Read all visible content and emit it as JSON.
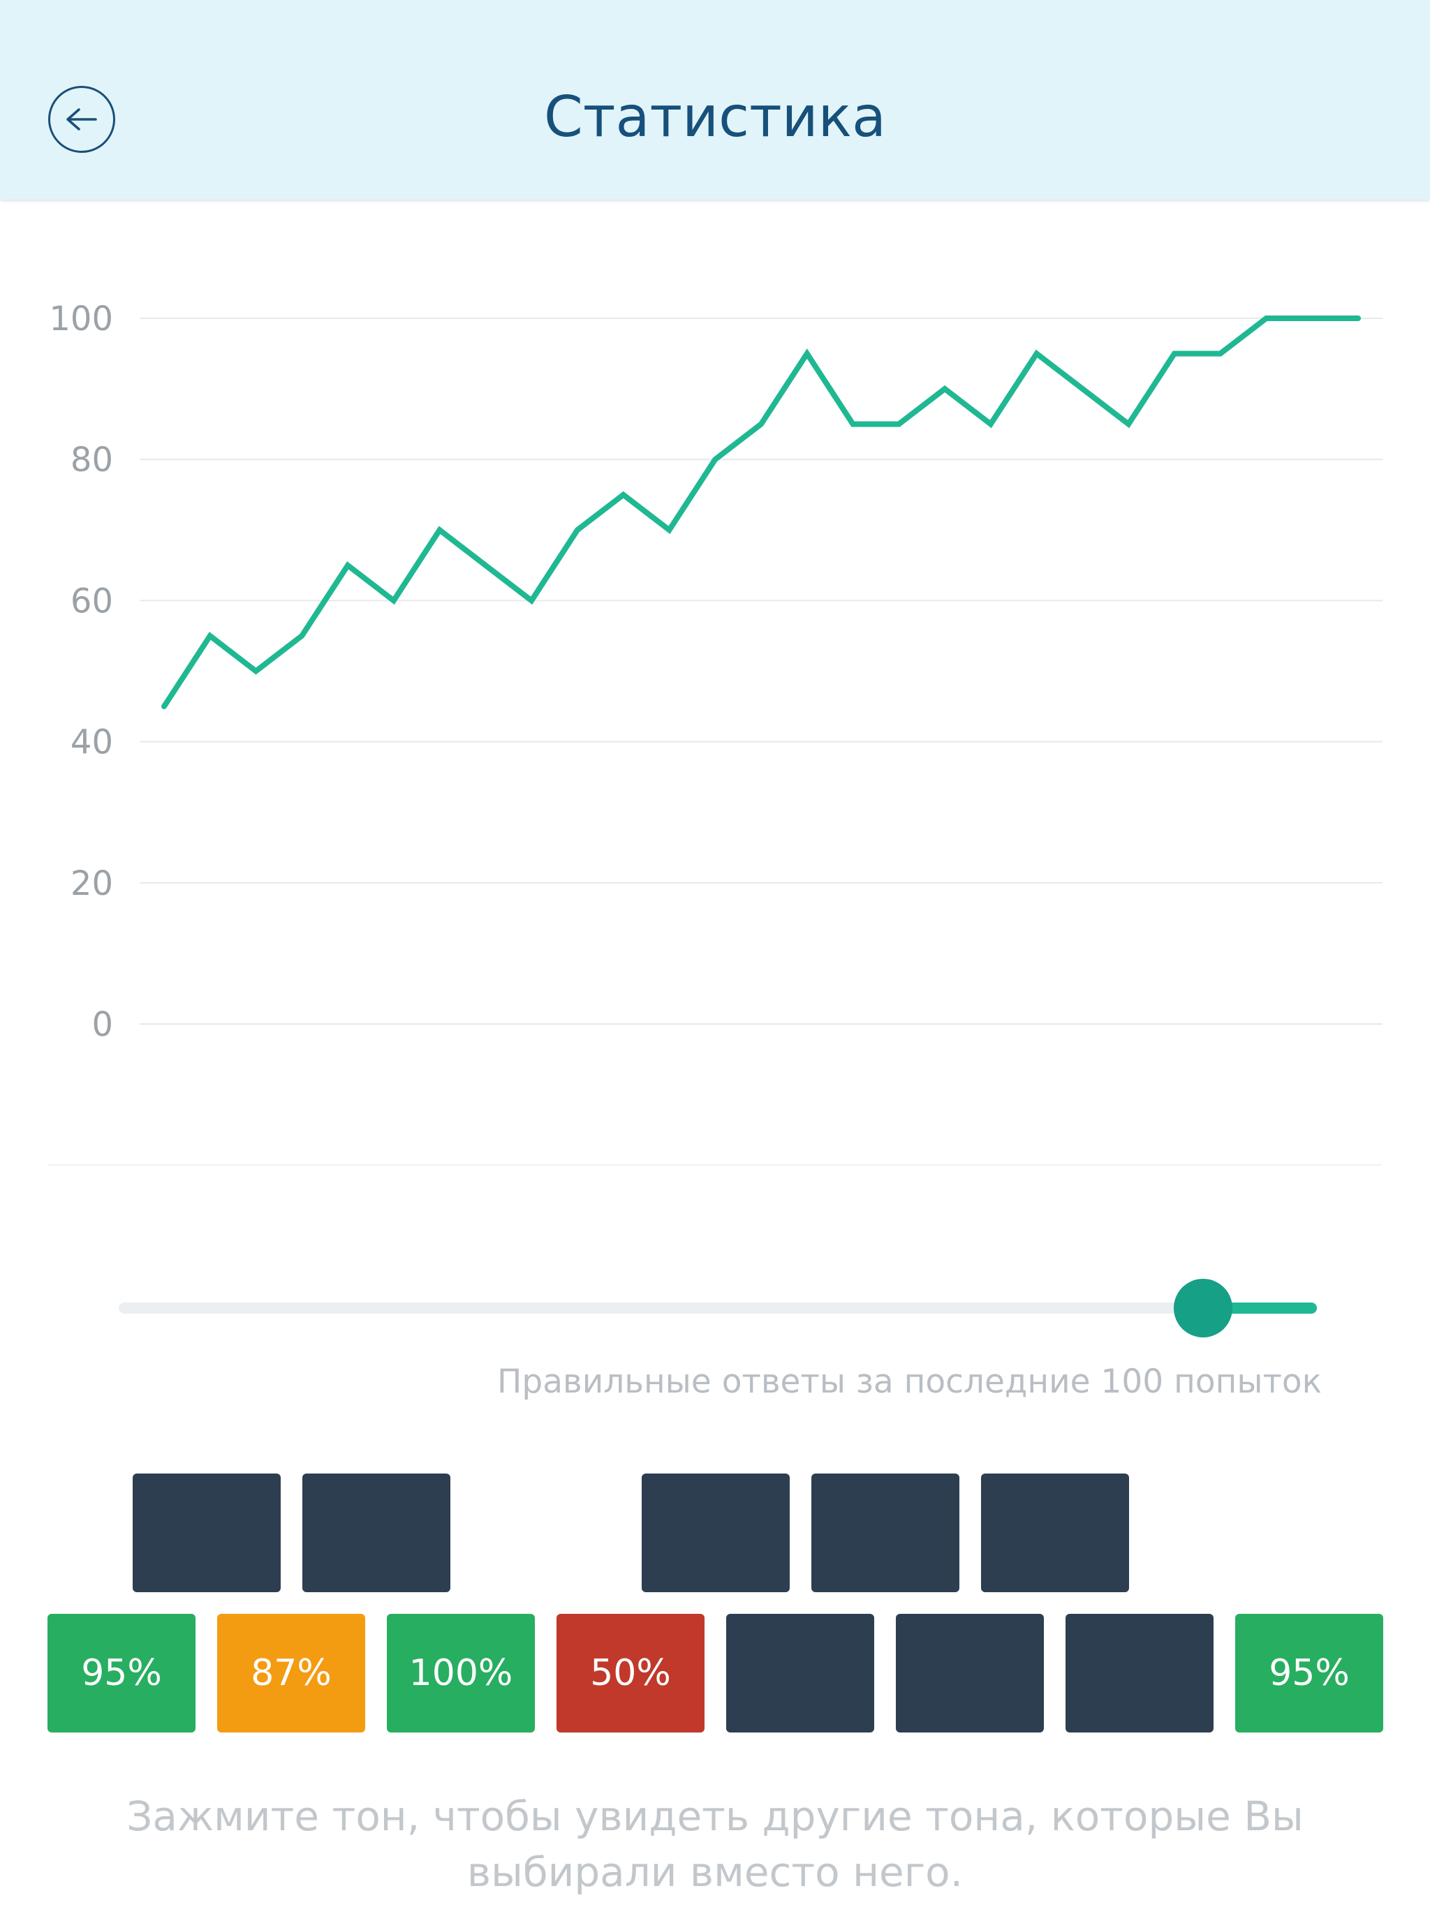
{
  "header": {
    "title": "Статистика",
    "back_icon": "arrow-left-icon"
  },
  "chart_data": {
    "type": "line",
    "title": "",
    "xlabel": "",
    "ylabel": "",
    "y_ticks": [
      "100",
      "80",
      "60",
      "40",
      "20",
      "0"
    ],
    "ylim": [
      0,
      100
    ],
    "grid": true,
    "series": [
      {
        "color": "#1fb892",
        "x": [
          1,
          2,
          3,
          4,
          5,
          6,
          7,
          8,
          9,
          10,
          11,
          12,
          13,
          14,
          15,
          16,
          17,
          18,
          19,
          20,
          21,
          22,
          23,
          24,
          25,
          26,
          27
        ],
        "values": [
          45,
          55,
          50,
          55,
          65,
          60,
          70,
          65,
          60,
          70,
          75,
          70,
          80,
          85,
          95,
          85,
          85,
          90,
          85,
          95,
          90,
          85,
          95,
          95,
          100,
          100,
          100
        ]
      }
    ]
  },
  "slider": {
    "value_fraction": 0.905,
    "caption": "Правильные ответы за последние 100 попыток"
  },
  "tiles": {
    "top_row": [
      {
        "label": "",
        "color": "#2d3e50"
      },
      {
        "label": "",
        "color": "#2d3e50"
      },
      {
        "label": "",
        "color": "#2d3e50"
      },
      {
        "label": "",
        "color": "#2d3e50"
      },
      {
        "label": "",
        "color": "#2d3e50"
      }
    ],
    "bottom_row": [
      {
        "label": "95%",
        "color": "#27ae60"
      },
      {
        "label": "87%",
        "color": "#f39c12"
      },
      {
        "label": "100%",
        "color": "#27ae60"
      },
      {
        "label": "50%",
        "color": "#c0392b"
      },
      {
        "label": "",
        "color": "#2d3e50"
      },
      {
        "label": "",
        "color": "#2d3e50"
      },
      {
        "label": "",
        "color": "#2d3e50"
      },
      {
        "label": "95%",
        "color": "#27ae60"
      }
    ]
  },
  "hint": "Зажмите тон, чтобы увидеть другие тона, которые Вы выбирали вместо него."
}
